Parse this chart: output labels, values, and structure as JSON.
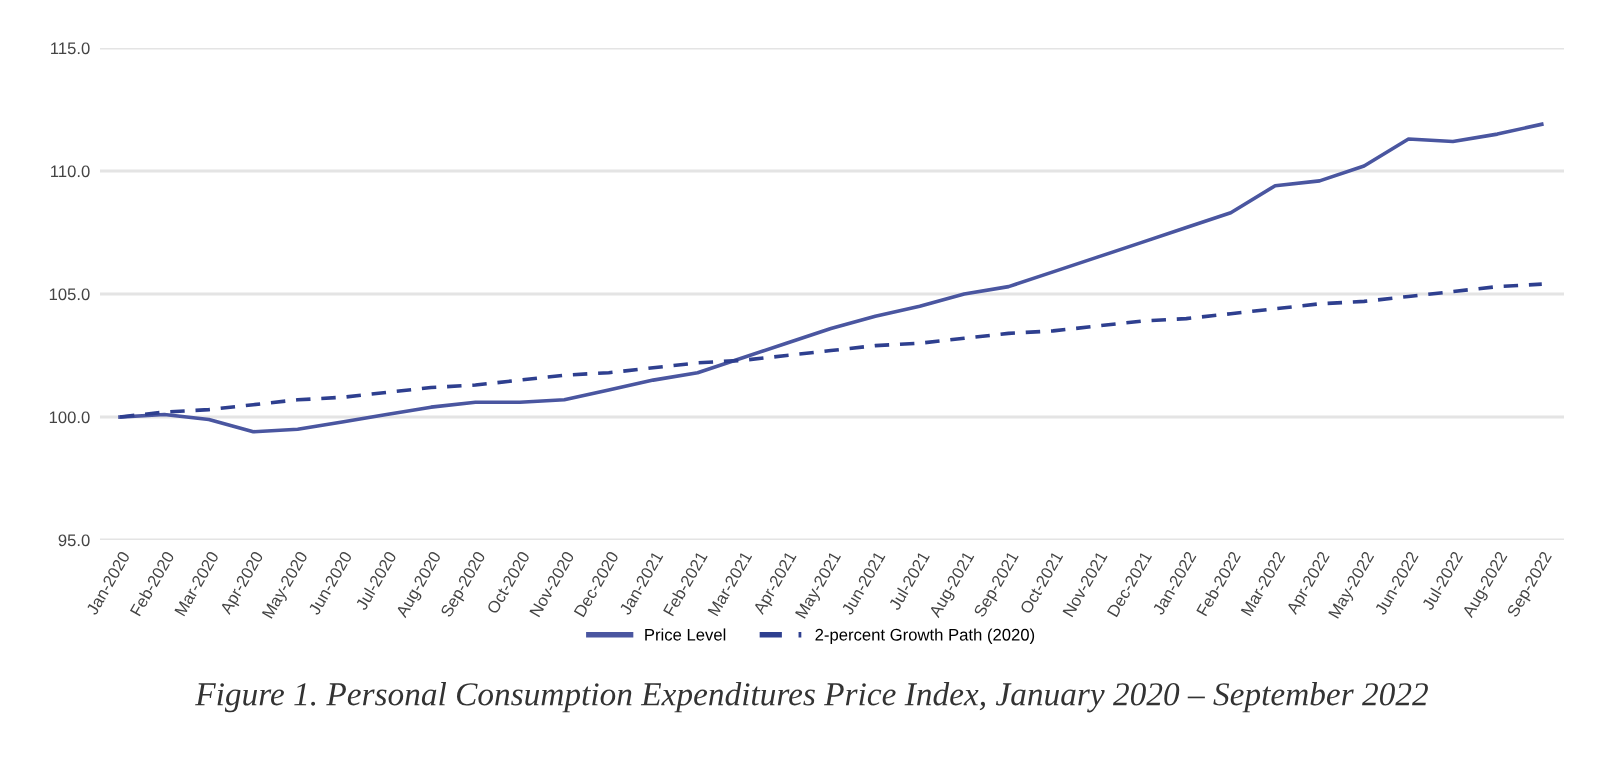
{
  "chart_data": {
    "type": "line",
    "categories": [
      "Jan-2020",
      "Feb-2020",
      "Mar-2020",
      "Apr-2020",
      "May-2020",
      "Jun-2020",
      "Jul-2020",
      "Aug-2020",
      "Sep-2020",
      "Oct-2020",
      "Nov-2020",
      "Dec-2020",
      "Jan-2021",
      "Feb-2021",
      "Mar-2021",
      "Apr-2021",
      "May-2021",
      "Jun-2021",
      "Jul-2021",
      "Aug-2021",
      "Sep-2021",
      "Oct-2021",
      "Nov-2021",
      "Dec-2021",
      "Jan-2022",
      "Feb-2022",
      "Mar-2022",
      "Apr-2022",
      "May-2022",
      "Jun-2022",
      "Jul-2022",
      "Aug-2022",
      "Sep-2022"
    ],
    "series": [
      {
        "name": "Price Level",
        "color": "#4a56a0",
        "line_style": "solid",
        "values": [
          100.0,
          100.1,
          99.9,
          99.4,
          99.5,
          99.8,
          100.1,
          100.4,
          100.6,
          100.6,
          100.7,
          101.1,
          101.5,
          101.8,
          102.4,
          103.0,
          103.6,
          104.1,
          104.5,
          105.0,
          105.3,
          105.9,
          106.5,
          107.1,
          107.7,
          108.3,
          109.4,
          109.6,
          110.2,
          111.3,
          111.2,
          111.5,
          111.9
        ]
      },
      {
        "name": "2-percent Growth Path (2020)",
        "color": "#2e3f8f",
        "line_style": "dashed",
        "values": [
          100.0,
          100.2,
          100.3,
          100.5,
          100.7,
          100.8,
          101.0,
          101.2,
          101.3,
          101.5,
          101.7,
          101.8,
          102.0,
          102.2,
          102.3,
          102.5,
          102.7,
          102.9,
          103.0,
          103.2,
          103.4,
          103.5,
          103.7,
          103.9,
          104.0,
          104.2,
          104.4,
          104.6,
          104.7,
          104.9,
          105.1,
          105.3,
          105.4
        ]
      }
    ],
    "ylim": [
      95,
      115
    ],
    "yticks": [
      {
        "value": 95,
        "label": "95.0"
      },
      {
        "value": 100,
        "label": "100.0"
      },
      {
        "value": 105,
        "label": "105.0"
      },
      {
        "value": 110,
        "label": "110.0"
      },
      {
        "value": 115,
        "label": "115.0"
      }
    ],
    "grid": "y",
    "legend": "bottom",
    "marker": "none",
    "annotations": [
      "Figure 1. Personal Consumption Expenditures Price Index, January 2020 – September 2022"
    ]
  }
}
